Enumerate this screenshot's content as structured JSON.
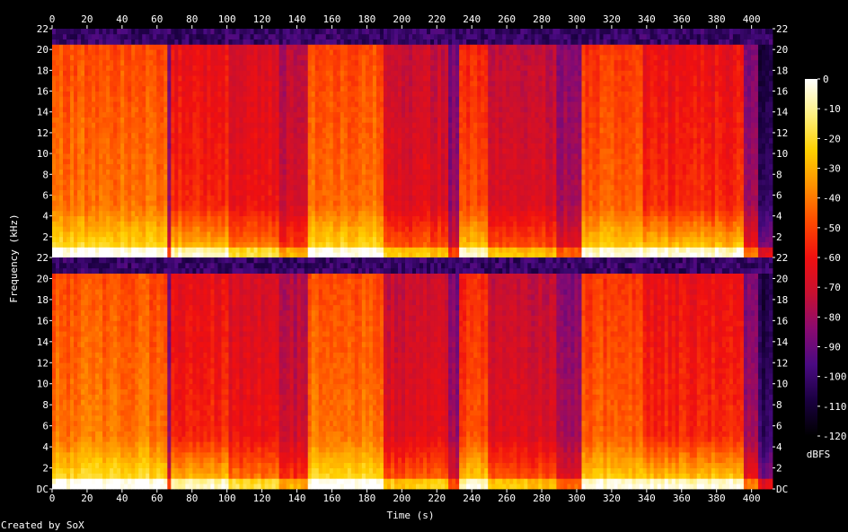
{
  "chart_data": {
    "type": "heatmap",
    "title": "",
    "xlabel": "Time (s)",
    "ylabel": "Frequency (kHz)",
    "xlim": [
      0,
      412
    ],
    "ylim": [
      0,
      22
    ],
    "x_ticks": [
      "0",
      "20",
      "40",
      "60",
      "80",
      "100",
      "120",
      "140",
      "160",
      "180",
      "200",
      "220",
      "240",
      "260",
      "280",
      "300",
      "320",
      "340",
      "360",
      "380",
      "400"
    ],
    "y_ticks": [
      "DC",
      "2",
      "4",
      "6",
      "8",
      "10",
      "12",
      "14",
      "16",
      "18",
      "20",
      "22"
    ],
    "channels": 2,
    "colorbar": {
      "label": "dBFS",
      "ticks": [
        "0",
        "-10",
        "-20",
        "-30",
        "-40",
        "-50",
        "-60",
        "-70",
        "-80",
        "-90",
        "-100",
        "-110",
        "-120"
      ],
      "range": [
        -120,
        0
      ],
      "colors": [
        "#000000",
        "#1a0040",
        "#4a0a82",
        "#8a0a70",
        "#c81030",
        "#f01010",
        "#ff4a00",
        "#ff9000",
        "#ffd000",
        "#fff080",
        "#ffffff"
      ]
    },
    "segments": [
      {
        "t0": 0,
        "t1": 65,
        "energy": 0.62,
        "bright_low": 0.55
      },
      {
        "t0": 65,
        "t1": 68,
        "energy": 0.3,
        "bright_low": 0.3
      },
      {
        "t0": 68,
        "t1": 100,
        "energy": 0.5,
        "bright_low": 0.75
      },
      {
        "t0": 100,
        "t1": 130,
        "energy": 0.45,
        "bright_low": 0.55
      },
      {
        "t0": 130,
        "t1": 146,
        "energy": 0.38,
        "bright_low": 0.45
      },
      {
        "t0": 146,
        "t1": 190,
        "energy": 0.62,
        "bright_low": 0.55
      },
      {
        "t0": 190,
        "t1": 226,
        "energy": 0.42,
        "bright_low": 0.5
      },
      {
        "t0": 226,
        "t1": 232,
        "energy": 0.28,
        "bright_low": 0.3
      },
      {
        "t0": 232,
        "t1": 250,
        "energy": 0.55,
        "bright_low": 0.6
      },
      {
        "t0": 250,
        "t1": 288,
        "energy": 0.4,
        "bright_low": 0.5
      },
      {
        "t0": 288,
        "t1": 303,
        "energy": 0.32,
        "bright_low": 0.35
      },
      {
        "t0": 303,
        "t1": 338,
        "energy": 0.58,
        "bright_low": 0.55
      },
      {
        "t0": 338,
        "t1": 396,
        "energy": 0.5,
        "bright_low": 0.8
      },
      {
        "t0": 396,
        "t1": 404,
        "energy": 0.3,
        "bright_low": 0.5
      },
      {
        "t0": 404,
        "t1": 412,
        "energy": 0.12,
        "bright_low": 0.4
      }
    ]
  },
  "footer": {
    "credit": "Created by SoX"
  }
}
